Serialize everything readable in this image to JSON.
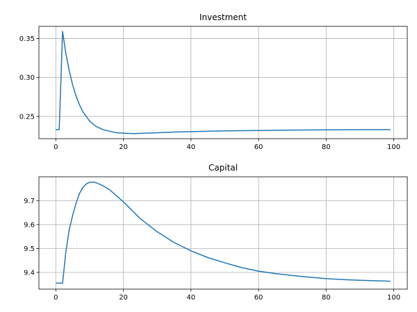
{
  "chart_data": [
    {
      "type": "line",
      "title": "Investment",
      "xlabel": "",
      "ylabel": "",
      "xlim": [
        -5,
        104
      ],
      "ylim": [
        0.2215,
        0.3655
      ],
      "grid": true,
      "xticks": [
        0,
        20,
        40,
        60,
        80,
        100
      ],
      "xtick_labels": [
        "0",
        "20",
        "40",
        "60",
        "80",
        "100"
      ],
      "yticks": [
        0.25,
        0.3,
        0.35
      ],
      "ytick_labels": [
        "0.25",
        "0.30",
        "0.35"
      ],
      "series": [
        {
          "color": "#1f77b4",
          "x": [
            0,
            1,
            2,
            3,
            4,
            5,
            6,
            7,
            8,
            9,
            10,
            12,
            14,
            16,
            18,
            20,
            23,
            26,
            30,
            35,
            40,
            50,
            60,
            70,
            80,
            90,
            99
          ],
          "y": [
            0.233,
            0.233,
            0.359,
            0.33,
            0.308,
            0.29,
            0.276,
            0.265,
            0.256,
            0.25,
            0.244,
            0.237,
            0.233,
            0.231,
            0.229,
            0.2285,
            0.228,
            0.2285,
            0.229,
            0.23,
            0.2305,
            0.2315,
            0.232,
            0.2325,
            0.2328,
            0.233,
            0.233
          ]
        }
      ]
    },
    {
      "type": "line",
      "title": "Capital",
      "xlabel": "",
      "ylabel": "",
      "xlim": [
        -5,
        104
      ],
      "ylim": [
        9.33,
        9.8
      ],
      "grid": true,
      "xticks": [
        0,
        20,
        40,
        60,
        80,
        100
      ],
      "xtick_labels": [
        "0",
        "20",
        "40",
        "60",
        "80",
        "100"
      ],
      "yticks": [
        9.4,
        9.5,
        9.6,
        9.7
      ],
      "ytick_labels": [
        "9.4",
        "9.5",
        "9.6",
        "9.7"
      ],
      "series": [
        {
          "color": "#1f77b4",
          "x": [
            0,
            1,
            2,
            3,
            4,
            5,
            6,
            7,
            8,
            9,
            10,
            11,
            12,
            14,
            16,
            18,
            20,
            25,
            30,
            35,
            40,
            45,
            50,
            55,
            60,
            65,
            70,
            75,
            80,
            85,
            90,
            95,
            99
          ],
          "y": [
            9.355,
            9.355,
            9.355,
            9.49,
            9.58,
            9.64,
            9.69,
            9.73,
            9.755,
            9.77,
            9.777,
            9.778,
            9.775,
            9.762,
            9.745,
            9.72,
            9.695,
            9.625,
            9.57,
            9.525,
            9.49,
            9.462,
            9.44,
            9.42,
            9.405,
            9.395,
            9.387,
            9.38,
            9.374,
            9.37,
            9.367,
            9.365,
            9.363
          ]
        }
      ]
    }
  ]
}
